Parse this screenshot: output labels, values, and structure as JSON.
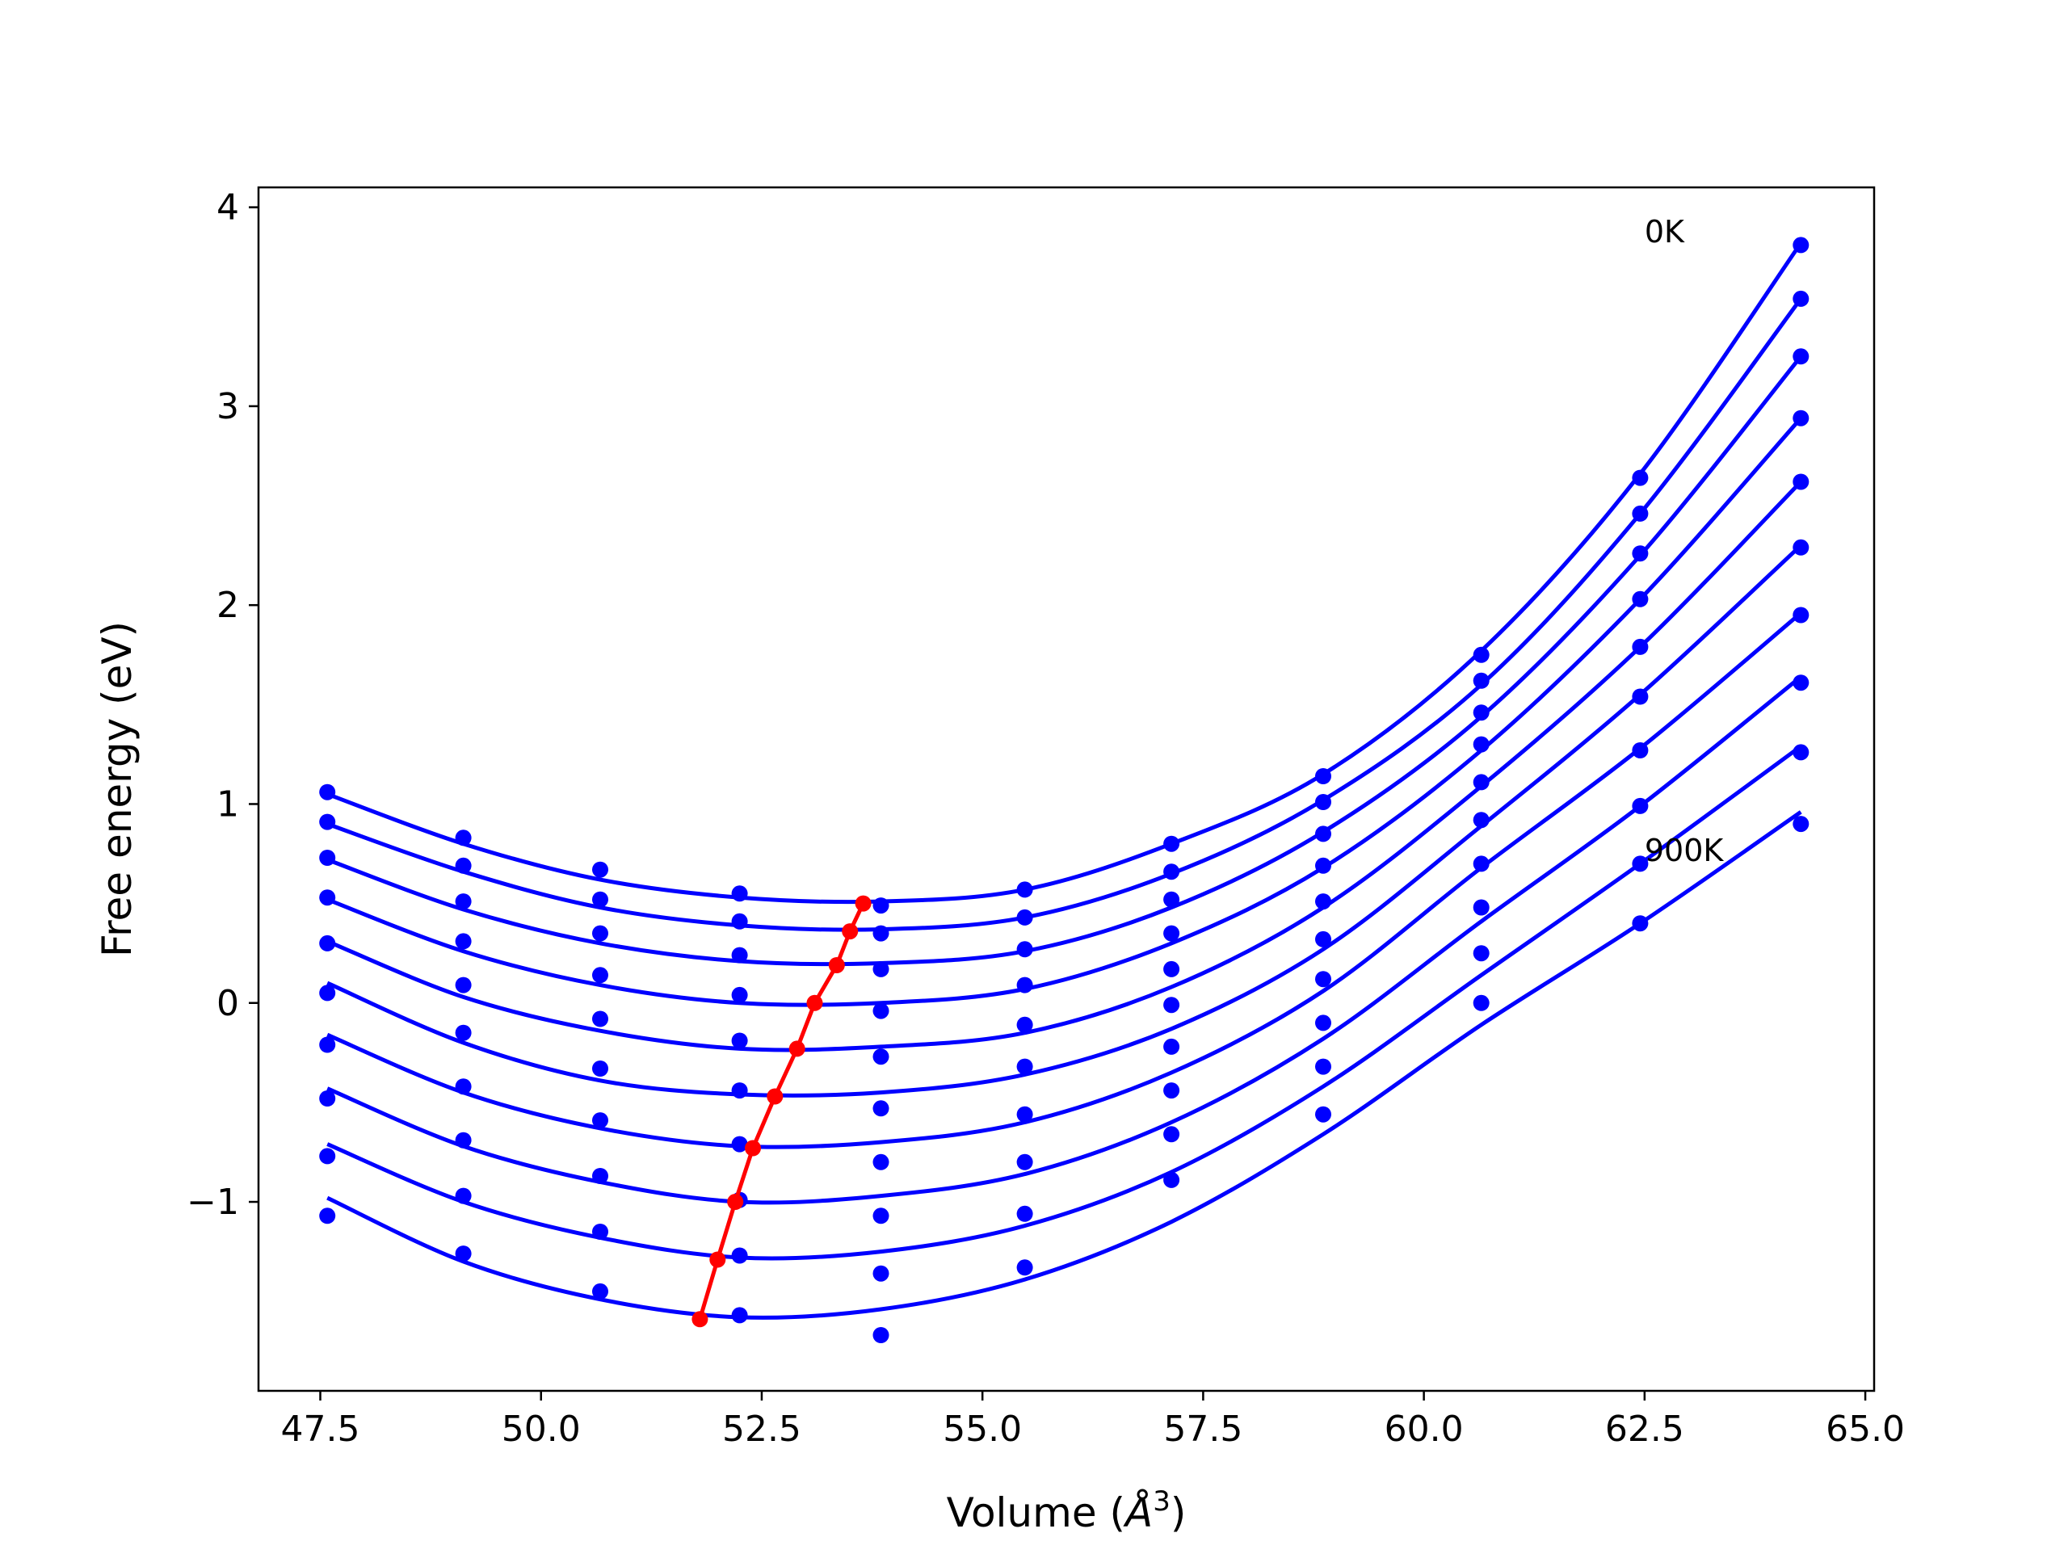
{
  "chart_data": {
    "type": "line",
    "xlabel": "Volume (",
    "xlabel_symbol": "Å",
    "xlabel_sup": "3",
    "xlabel_close": ")",
    "ylabel": "Free energy (eV)",
    "xlim": [
      46.8,
      65.1
    ],
    "ylim": [
      -1.95,
      4.1
    ],
    "xticks": [
      47.5,
      50.0,
      52.5,
      55.0,
      57.5,
      60.0,
      62.5,
      65.0
    ],
    "xtick_labels": [
      "47.5",
      "50.0",
      "52.5",
      "55.0",
      "57.5",
      "60.0",
      "62.5",
      "65.0"
    ],
    "yticks": [
      -1,
      0,
      1,
      2,
      3,
      4
    ],
    "ytick_labels": [
      "−1",
      "0",
      "1",
      "2",
      "3",
      "4"
    ],
    "grid": false,
    "annotations": [
      {
        "text": "0K",
        "x": 62.5,
        "y": 3.88
      },
      {
        "text": "900K",
        "x": 62.5,
        "y": 0.77
      }
    ],
    "colors": {
      "series": "#0000ff",
      "minima": "#ff0000"
    },
    "volumes": [
      47.58,
      49.12,
      50.67,
      52.25,
      53.85,
      55.48,
      57.14,
      58.86,
      60.65,
      62.45,
      64.27
    ],
    "series": [
      {
        "values": [
          1.06,
          0.83,
          0.67,
          0.55,
          0.49,
          0.57,
          0.8,
          1.14,
          1.75,
          2.64,
          3.81
        ],
        "fit": [
          1.05,
          0.8,
          0.62,
          0.53,
          0.51,
          0.57,
          0.8,
          1.15,
          1.77,
          2.66,
          3.82
        ]
      },
      {
        "values": [
          0.91,
          0.69,
          0.52,
          0.41,
          0.35,
          0.43,
          0.66,
          1.01,
          1.62,
          2.46,
          3.54
        ],
        "fit": [
          0.9,
          0.66,
          0.48,
          0.39,
          0.37,
          0.43,
          0.65,
          1.02,
          1.6,
          2.46,
          3.54
        ]
      },
      {
        "values": [
          0.73,
          0.51,
          0.35,
          0.24,
          0.17,
          0.27,
          0.52,
          0.85,
          1.46,
          2.26,
          3.25
        ],
        "fit": [
          0.72,
          0.47,
          0.3,
          0.21,
          0.2,
          0.26,
          0.48,
          0.86,
          1.44,
          2.25,
          3.25
        ]
      },
      {
        "values": [
          0.53,
          0.31,
          0.14,
          0.04,
          -0.04,
          0.09,
          0.35,
          0.69,
          1.3,
          2.03,
          2.94
        ],
        "fit": [
          0.52,
          0.26,
          0.09,
          0.0,
          0.0,
          0.07,
          0.3,
          0.68,
          1.27,
          2.03,
          2.94
        ]
      },
      {
        "values": [
          0.3,
          0.09,
          -0.08,
          -0.19,
          -0.27,
          -0.11,
          0.17,
          0.51,
          1.11,
          1.79,
          2.62
        ],
        "fit": [
          0.31,
          0.03,
          -0.14,
          -0.23,
          -0.22,
          -0.15,
          0.08,
          0.48,
          1.09,
          1.79,
          2.62
        ]
      },
      {
        "values": [
          0.05,
          -0.15,
          -0.33,
          -0.44,
          -0.53,
          -0.32,
          -0.01,
          0.32,
          0.92,
          1.54,
          2.29
        ],
        "fit": [
          0.1,
          -0.2,
          -0.39,
          -0.46,
          -0.45,
          -0.36,
          -0.13,
          0.27,
          0.89,
          1.55,
          2.3
        ]
      },
      {
        "values": [
          -0.21,
          -0.42,
          -0.59,
          -0.71,
          -0.8,
          -0.56,
          -0.22,
          0.12,
          0.7,
          1.27,
          1.95
        ],
        "fit": [
          -0.16,
          -0.45,
          -0.63,
          -0.72,
          -0.7,
          -0.6,
          -0.35,
          0.06,
          0.68,
          1.28,
          1.96
        ]
      },
      {
        "values": [
          -0.48,
          -0.69,
          -0.87,
          -0.99,
          -1.07,
          -0.8,
          -0.44,
          -0.1,
          0.48,
          0.99,
          1.61
        ],
        "fit": [
          -0.43,
          -0.72,
          -0.9,
          -1.0,
          -0.97,
          -0.86,
          -0.6,
          -0.18,
          0.41,
          0.99,
          1.64
        ]
      },
      {
        "values": [
          -0.77,
          -0.97,
          -1.15,
          -1.27,
          -1.36,
          -1.06,
          -0.66,
          -0.32,
          0.25,
          0.7,
          1.26
        ],
        "fit": [
          -0.71,
          -1.0,
          -1.18,
          -1.28,
          -1.25,
          -1.12,
          -0.85,
          -0.42,
          0.14,
          0.7,
          1.29
        ]
      },
      {
        "values": [
          -1.07,
          -1.26,
          -1.45,
          -1.57,
          -1.67,
          -1.33,
          -0.89,
          -0.56,
          0.0,
          0.4,
          0.9
        ],
        "fit": [
          -0.98,
          -1.3,
          -1.49,
          -1.58,
          -1.54,
          -1.39,
          -1.1,
          -0.66,
          -0.11,
          0.4,
          0.96
        ]
      }
    ],
    "minima": {
      "x": [
        53.65,
        53.5,
        53.35,
        53.1,
        52.9,
        52.65,
        52.4,
        52.2,
        52.0,
        51.8
      ],
      "y": [
        0.5,
        0.36,
        0.19,
        0.0,
        -0.23,
        -0.47,
        -0.73,
        -1.0,
        -1.29,
        -1.59
      ]
    }
  }
}
